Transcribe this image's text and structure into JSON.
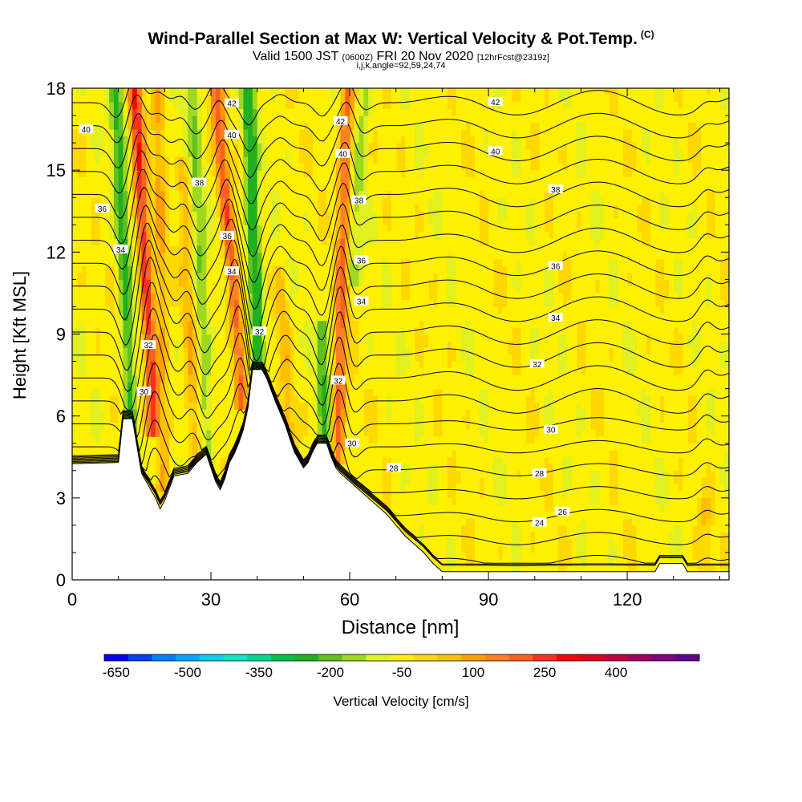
{
  "header": {
    "title": "Wind-Parallel Section at Max W: Vertical Velocity & Pot.Temp.",
    "copyright": "(C)",
    "valid_prefix": "Valid 1500 JST",
    "utc": "(0600Z)",
    "valid_date": "FRI 20 Nov 2020",
    "forecast": "[12hrFcst@2319z]",
    "params": "i,j,k,angle=92,59,24,74"
  },
  "chart_data": {
    "type": "heatmap",
    "xlabel": "Distance [nm]",
    "ylabel": "Height [Kft MSL]",
    "xlim": [
      0,
      142
    ],
    "ylim": [
      0,
      18
    ],
    "x_ticks": [
      "0",
      "30",
      "60",
      "90",
      "120"
    ],
    "x_tick_values": [
      0,
      30,
      60,
      90,
      120
    ],
    "y_ticks": [
      "0",
      "3",
      "6",
      "9",
      "12",
      "15",
      "18"
    ],
    "y_tick_values": [
      0,
      3,
      6,
      9,
      12,
      15,
      18
    ],
    "colorbar": {
      "label": "Vertical Velocity [cm/s]",
      "tick_labels": [
        "-650",
        "-500",
        "-350",
        "-200",
        "-50",
        "100",
        "250",
        "400"
      ],
      "colors": [
        "#0000ff",
        "#0040ff",
        "#0080ff",
        "#00a8ff",
        "#00d0f0",
        "#00e8c8",
        "#00d890",
        "#00c050",
        "#20b020",
        "#60c020",
        "#a0d820",
        "#e0f020",
        "#fff000",
        "#ffd800",
        "#ffc000",
        "#ffa000",
        "#ff8020",
        "#ff6020",
        "#ff3020",
        "#ff0000",
        "#e00020",
        "#c00040",
        "#a00060",
        "#800080",
        "#600090"
      ]
    },
    "theta_isentropes": [
      22,
      23,
      24,
      25,
      26,
      27,
      28,
      29,
      30,
      31,
      32,
      33,
      34,
      35,
      36,
      37,
      38,
      39,
      40,
      41,
      42,
      43,
      44
    ],
    "contour_labels": [
      {
        "text": "42",
        "x": 34.5,
        "y": 17.45
      },
      {
        "text": "40",
        "x": 3,
        "y": 16.5
      },
      {
        "text": "40",
        "x": 34.5,
        "y": 16.3
      },
      {
        "text": "38",
        "x": 27.5,
        "y": 14.55
      },
      {
        "text": "36",
        "x": 6.5,
        "y": 13.6
      },
      {
        "text": "36",
        "x": 33.5,
        "y": 12.6
      },
      {
        "text": "34",
        "x": 10.5,
        "y": 12.1
      },
      {
        "text": "34",
        "x": 34.5,
        "y": 11.3
      },
      {
        "text": "32",
        "x": 40.5,
        "y": 9.1
      },
      {
        "text": "32",
        "x": 16.5,
        "y": 8.6
      },
      {
        "text": "30",
        "x": 15.5,
        "y": 6.9
      },
      {
        "text": "42",
        "x": 58,
        "y": 16.8
      },
      {
        "text": "40",
        "x": 58.5,
        "y": 15.6
      },
      {
        "text": "38",
        "x": 62,
        "y": 13.9
      },
      {
        "text": "36",
        "x": 62.5,
        "y": 11.7
      },
      {
        "text": "34",
        "x": 62.5,
        "y": 10.2
      },
      {
        "text": "32",
        "x": 57.5,
        "y": 7.3
      },
      {
        "text": "30",
        "x": 60.5,
        "y": 5.0
      },
      {
        "text": "28",
        "x": 69.5,
        "y": 4.1
      },
      {
        "text": "42",
        "x": 91.5,
        "y": 17.5
      },
      {
        "text": "40",
        "x": 91.5,
        "y": 15.7
      },
      {
        "text": "38",
        "x": 104.5,
        "y": 14.3
      },
      {
        "text": "36",
        "x": 104.5,
        "y": 11.5
      },
      {
        "text": "34",
        "x": 104.5,
        "y": 9.6
      },
      {
        "text": "32",
        "x": 100.5,
        "y": 7.9
      },
      {
        "text": "30",
        "x": 103.5,
        "y": 5.5
      },
      {
        "text": "28",
        "x": 101,
        "y": 3.9
      },
      {
        "text": "26",
        "x": 106,
        "y": 2.5
      },
      {
        "text": "24",
        "x": 101,
        "y": 2.1
      }
    ],
    "terrain": [
      [
        0,
        4.25
      ],
      [
        10,
        4.3
      ],
      [
        11,
        5.9
      ],
      [
        13,
        5.9
      ],
      [
        15,
        3.9
      ],
      [
        16,
        3.6
      ],
      [
        17,
        3.3
      ],
      [
        18,
        3.0
      ],
      [
        19,
        2.6
      ],
      [
        20,
        2.9
      ],
      [
        22,
        3.8
      ],
      [
        25,
        3.9
      ],
      [
        27,
        4.3
      ],
      [
        29,
        4.6
      ],
      [
        31,
        3.6
      ],
      [
        32,
        3.3
      ],
      [
        33,
        3.7
      ],
      [
        34,
        4.3
      ],
      [
        35,
        4.6
      ],
      [
        36,
        5.0
      ],
      [
        37,
        5.5
      ],
      [
        38,
        6.3
      ],
      [
        39,
        7.7
      ],
      [
        41,
        7.7
      ],
      [
        42,
        7.4
      ],
      [
        44,
        6.5
      ],
      [
        46,
        5.7
      ],
      [
        48,
        4.7
      ],
      [
        50,
        4.1
      ],
      [
        51,
        4.3
      ],
      [
        52,
        4.7
      ],
      [
        53,
        5.0
      ],
      [
        55,
        5.0
      ],
      [
        56,
        4.5
      ],
      [
        57,
        4.1
      ],
      [
        58,
        3.9
      ],
      [
        60,
        3.6
      ],
      [
        62,
        3.3
      ],
      [
        64,
        3.0
      ],
      [
        66,
        2.7
      ],
      [
        68,
        2.4
      ],
      [
        70,
        2.0
      ],
      [
        72,
        1.6
      ],
      [
        74,
        1.3
      ],
      [
        76,
        1.0
      ],
      [
        78,
        0.6
      ],
      [
        80,
        0.3
      ],
      [
        126,
        0.3
      ],
      [
        127,
        0.6
      ],
      [
        132,
        0.6
      ],
      [
        133,
        0.3
      ],
      [
        142,
        0.3
      ]
    ],
    "updraft_columns": [
      {
        "x_base": 17.5,
        "z_base": 6.5,
        "x_top": 13.5,
        "z_top": 18,
        "strength": 2.6
      },
      {
        "x_base": 20,
        "z_base": 4.5,
        "x_top": 18.5,
        "z_top": 18,
        "strength": 1.0
      },
      {
        "x_base": 36.5,
        "z_base": 7.5,
        "x_top": 31,
        "z_top": 18,
        "strength": 2.1
      },
      {
        "x_base": 26.5,
        "z_base": 4.5,
        "x_top": 24,
        "z_top": 15,
        "strength": 0.9
      },
      {
        "x_base": 57.5,
        "z_base": 5.5,
        "x_top": 59.5,
        "z_top": 18,
        "strength": 2.0
      },
      {
        "x_base": 47,
        "z_base": 6,
        "x_top": 45,
        "z_top": 11,
        "strength": 0.8
      },
      {
        "x_base": 137,
        "z_base": 1.0,
        "x_top": 137,
        "z_top": 2.5,
        "strength": 0.6
      }
    ],
    "downdraft_columns": [
      {
        "x_base": 13,
        "z_base": 5,
        "x_top": 9.5,
        "z_top": 18,
        "strength": 1.6
      },
      {
        "x_base": 29.5,
        "z_base": 4,
        "x_top": 26,
        "z_top": 18,
        "strength": 1.0
      },
      {
        "x_base": 40.5,
        "z_base": 7,
        "x_top": 38,
        "z_top": 18,
        "strength": 2.3
      },
      {
        "x_base": 55,
        "z_base": 4.5,
        "x_top": 54,
        "z_top": 9,
        "strength": 1.4
      },
      {
        "x_base": 60.5,
        "z_base": 12,
        "x_top": 63.5,
        "z_top": 18,
        "strength": 0.8
      }
    ]
  }
}
